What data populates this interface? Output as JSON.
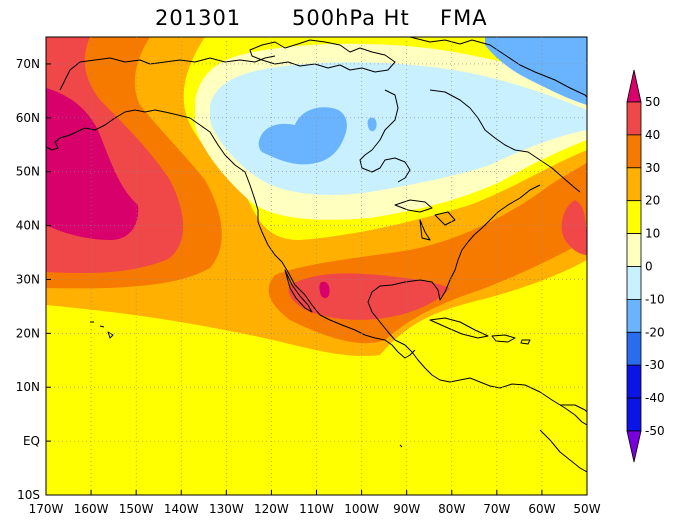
{
  "title": {
    "date": "201301",
    "variable": "500hPa Ht",
    "season": "FMA"
  },
  "map": {
    "lon_range": [
      -170,
      -50
    ],
    "lat_range": [
      -10,
      75
    ],
    "x_ticks": [
      "170W",
      "160W",
      "150W",
      "140W",
      "130W",
      "120W",
      "110W",
      "100W",
      "90W",
      "80W",
      "70W",
      "60W",
      "50W"
    ],
    "y_ticks": [
      "70N",
      "60N",
      "50N",
      "40N",
      "30N",
      "20N",
      "10N",
      "EQ",
      "10S"
    ],
    "x_tick_values": [
      -170,
      -160,
      -150,
      -140,
      -130,
      -120,
      -110,
      -100,
      -90,
      -80,
      -70,
      -60,
      -50
    ],
    "y_tick_values": [
      70,
      60,
      50,
      40,
      30,
      20,
      10,
      0,
      -10
    ],
    "background_fill": "#ffff00"
  },
  "colorbar": {
    "levels": [
      "50",
      "40",
      "30",
      "20",
      "10",
      "0",
      "-10",
      "-20",
      "-30",
      "-40",
      "-50"
    ],
    "colors": [
      "#d8006b",
      "#f04848",
      "#f77a00",
      "#ffb000",
      "#ffff00",
      "#ffffc0",
      "#c8f0ff",
      "#6ab4ff",
      "#2a6cf0",
      "#0a14e6",
      "#7800dc"
    ]
  },
  "anomaly_regions": [
    {
      "name": "positive-10-fill",
      "color": "#ffff00"
    },
    {
      "name": "positive-20-fill",
      "color": "#ffb000"
    },
    {
      "name": "positive-30-fill",
      "color": "#f77a00"
    },
    {
      "name": "positive-40-fill",
      "color": "#f04848"
    },
    {
      "name": "positive-50-fill",
      "color": "#d8006b"
    },
    {
      "name": "zero-band-fill",
      "color": "#ffffc0"
    },
    {
      "name": "negative-10-fill",
      "color": "#c8f0ff"
    },
    {
      "name": "negative-20-fill",
      "color": "#6ab4ff"
    }
  ]
}
